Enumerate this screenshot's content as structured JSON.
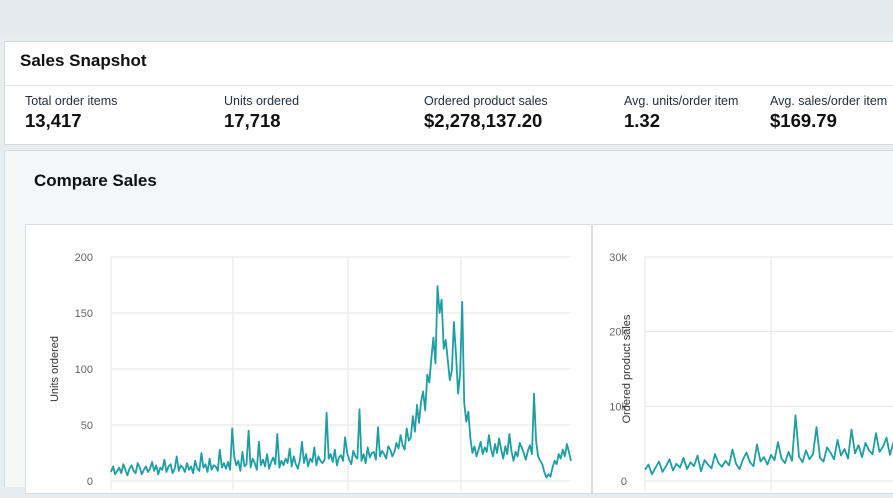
{
  "snapshot": {
    "title": "Sales Snapshot",
    "metrics": [
      {
        "label": "Total order items",
        "value": "13,417"
      },
      {
        "label": "Units ordered",
        "value": "17,718"
      },
      {
        "label": "Ordered product sales",
        "value": "$2,278,137.20"
      },
      {
        "label": "Avg. units/order item",
        "value": "1.32"
      },
      {
        "label": "Avg. sales/order item",
        "value": "$169.79"
      }
    ]
  },
  "compare": {
    "title": "Compare Sales"
  },
  "colors": {
    "series": "#1e9ea4",
    "grid": "#e6e6e6",
    "tick": "#666666"
  },
  "chart_data": [
    {
      "type": "line",
      "title": "",
      "ylabel": "Units ordered",
      "xlabel": "",
      "ylim": [
        0,
        200
      ],
      "yticks": [
        0,
        50,
        100,
        150,
        200
      ],
      "grid": true,
      "series": [
        {
          "values": [
            8,
            13,
            6,
            9,
            12,
            7,
            15,
            10,
            5,
            11,
            14,
            9,
            7,
            16,
            12,
            6,
            10,
            13,
            8,
            11,
            17,
            9,
            14,
            6,
            12,
            10,
            19,
            8,
            13,
            15,
            7,
            11,
            22,
            9,
            14,
            12,
            8,
            16,
            10,
            13,
            7,
            18,
            11,
            9,
            25,
            12,
            15,
            8,
            20,
            10,
            14,
            13,
            9,
            28,
            12,
            16,
            11,
            17,
            10,
            47,
            22,
            14,
            18,
            9,
            26,
            13,
            15,
            45,
            12,
            20,
            16,
            10,
            35,
            14,
            19,
            13,
            24,
            11,
            17,
            21,
            15,
            42,
            12,
            18,
            14,
            20,
            16,
            29,
            13,
            22,
            15,
            11,
            19,
            35,
            16,
            24,
            13,
            20,
            17,
            30,
            14,
            22,
            18,
            16,
            19,
            61,
            20,
            24,
            17,
            28,
            14,
            21,
            23,
            18,
            39,
            25,
            19,
            15,
            27,
            22,
            20,
            64,
            18,
            24,
            16,
            30,
            21,
            25,
            26,
            19,
            48,
            22,
            27,
            24,
            20,
            31,
            28,
            22,
            26,
            34,
            29,
            41,
            32,
            28,
            47,
            36,
            39,
            58,
            44,
            68,
            52,
            71,
            80,
            63,
            95,
            88,
            110,
            128,
            105,
            174,
            150,
            162,
            118,
            126,
            108,
            90,
            99,
            142,
            113,
            78,
            96,
            160,
            70,
            53,
            62,
            38,
            25,
            31,
            22,
            28,
            35,
            24,
            30,
            26,
            41,
            29,
            22,
            33,
            25,
            38,
            28,
            20,
            31,
            24,
            42,
            27,
            18,
            26,
            22,
            34,
            30,
            25,
            19,
            27,
            32,
            24,
            78,
            36,
            22,
            18,
            15,
            8,
            3,
            6,
            4,
            12,
            18,
            15,
            24,
            20,
            28,
            22,
            33,
            26,
            18
          ]
        }
      ]
    },
    {
      "type": "line",
      "title": "",
      "ylabel": "Ordered product sales",
      "xlabel": "",
      "ylim": [
        0,
        30000
      ],
      "yticks": [
        0,
        10000,
        20000,
        30000
      ],
      "ytick_labels": [
        "0",
        "10k",
        "20k",
        "30k"
      ],
      "grid": true,
      "series": [
        {
          "values": [
            1500,
            2200,
            900,
            1800,
            2600,
            1200,
            2000,
            2900,
            1400,
            2300,
            1800,
            3100,
            1600,
            2500,
            2000,
            3400,
            1300,
            2800,
            2200,
            1700,
            3600,
            2400,
            1900,
            2700,
            2100,
            4200,
            2300,
            1600,
            2900,
            3800,
            2500,
            2000,
            4900,
            2600,
            3200,
            2200,
            3500,
            2800,
            5200,
            3000,
            2400,
            3900,
            2700,
            8800,
            3300,
            2500,
            4100,
            2900,
            3600,
            7200,
            3100,
            2600,
            4500,
            3800,
            2900,
            5500,
            3400,
            4300,
            3000,
            6900,
            3700,
            4800,
            3200,
            5100,
            4100,
            3600,
            6400,
            3900,
            4600,
            5800,
            3500,
            5200,
            4000
          ]
        }
      ]
    }
  ]
}
